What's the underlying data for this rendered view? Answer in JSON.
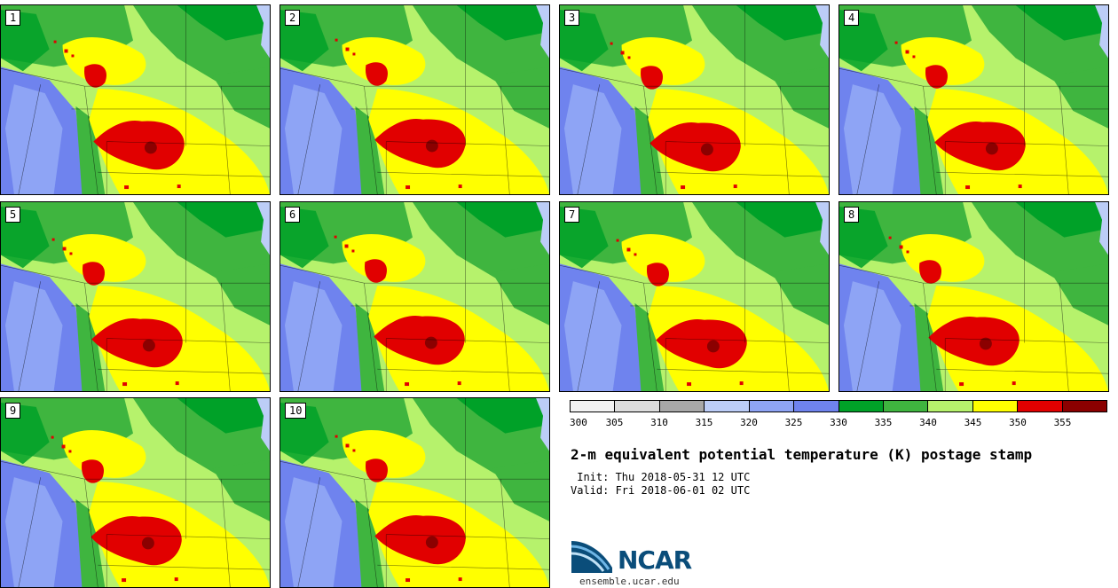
{
  "panels": [
    {
      "label": "1"
    },
    {
      "label": "2"
    },
    {
      "label": "3"
    },
    {
      "label": "4"
    },
    {
      "label": "5"
    },
    {
      "label": "6"
    },
    {
      "label": "7"
    },
    {
      "label": "8"
    },
    {
      "label": "9"
    },
    {
      "label": "10"
    }
  ],
  "colorbar": {
    "colors": [
      "#f2f2f2",
      "#dcdcdc",
      "#a8a8a8",
      "#bccdf7",
      "#8ea4f5",
      "#6f83ee",
      "#00a128",
      "#3fb53f",
      "#b6f26c",
      "#ffff00",
      "#e10000",
      "#8b0000"
    ],
    "ticks": [
      "300",
      "305",
      "310",
      "315",
      "320",
      "325",
      "330",
      "335",
      "340",
      "345",
      "350",
      "355"
    ]
  },
  "title": "2-m equivalent potential temperature (K) postage stamp",
  "init": " Init: Thu 2018-05-31 12 UTC",
  "valid": "Valid: Fri 2018-06-01 02 UTC",
  "logo": {
    "text": "NCAR",
    "url": "ensemble.ucar.edu"
  }
}
